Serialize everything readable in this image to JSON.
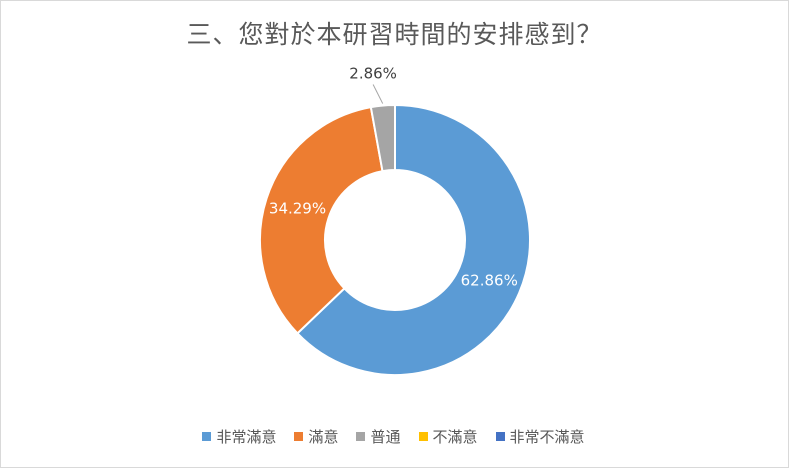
{
  "chart_data": {
    "type": "pie",
    "title": "三、您對於本研習時間的安排感到？",
    "categories": [
      "非常滿意",
      "滿意",
      "普通",
      "不滿意",
      "非常不滿意"
    ],
    "values": [
      62.86,
      34.29,
      2.86,
      0,
      0
    ],
    "data_labels": [
      "62.86%",
      "34.29%",
      "2.86%",
      "",
      ""
    ],
    "colors": [
      "#5B9BD5",
      "#ED7D31",
      "#A5A5A5",
      "#FFC000",
      "#4472C4"
    ],
    "legend_position": "bottom",
    "hole": true
  }
}
